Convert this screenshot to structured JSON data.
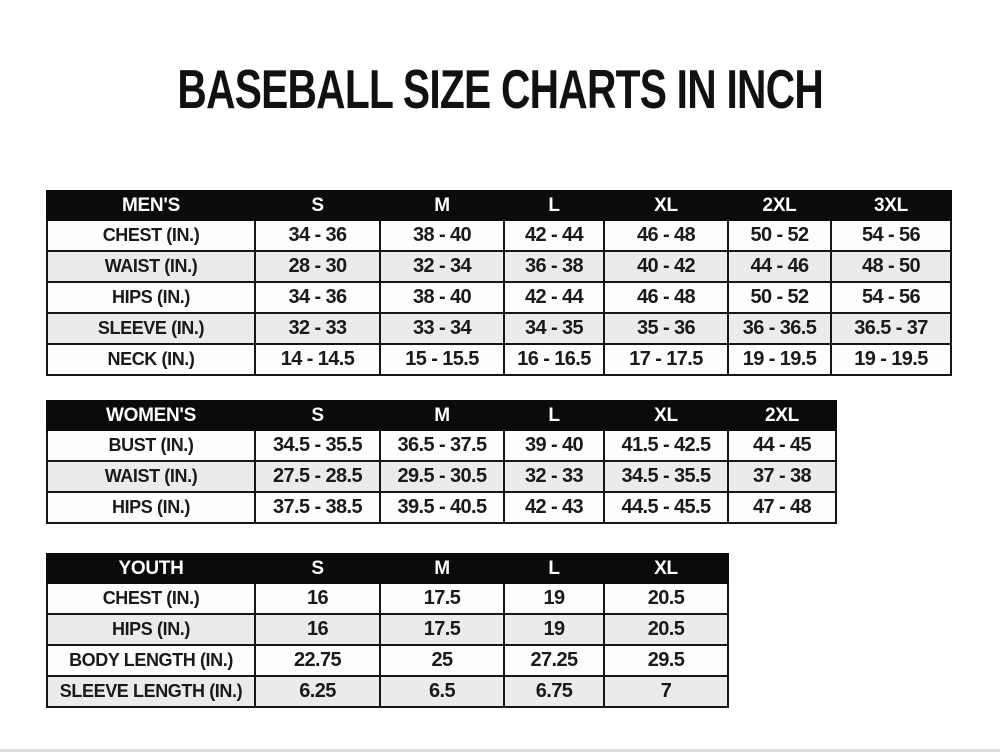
{
  "title": "BASEBALL SIZE CHARTS IN INCH",
  "colors": {
    "header_bg": "#0b0b0b",
    "header_text": "#ffffff",
    "stripe_row": "#ebebeb",
    "plain_row": "#fdfdfd",
    "border": "#161616",
    "text": "#1a1a1a",
    "page_bg": "#ffffff"
  },
  "tables": [
    {
      "name": "mens",
      "group_label": "MEN'S",
      "size_columns": [
        "S",
        "M",
        "L",
        "XL",
        "2XL",
        "3XL"
      ],
      "rows": [
        {
          "label": "CHEST (IN.)",
          "values": [
            "34 - 36",
            "38 - 40",
            "42 - 44",
            "46 - 48",
            "50 - 52",
            "54 - 56"
          ]
        },
        {
          "label": "WAIST (IN.)",
          "values": [
            "28 - 30",
            "32 - 34",
            "36 - 38",
            "40 - 42",
            "44 - 46",
            "48 - 50"
          ]
        },
        {
          "label": "HIPS (IN.)",
          "values": [
            "34 - 36",
            "38 - 40",
            "42 - 44",
            "46 - 48",
            "50 - 52",
            "54 - 56"
          ]
        },
        {
          "label": "SLEEVE (IN.)",
          "values": [
            "32 - 33",
            "33 - 34",
            "34 - 35",
            "35 - 36",
            "36 - 36.5",
            "36.5 - 37"
          ]
        },
        {
          "label": "NECK (IN.)",
          "values": [
            "14 - 14.5",
            "15 - 15.5",
            "16 - 16.5",
            "17 - 17.5",
            "19 - 19.5",
            "19 - 19.5"
          ]
        }
      ]
    },
    {
      "name": "womens",
      "group_label": "WOMEN'S",
      "size_columns": [
        "S",
        "M",
        "L",
        "XL",
        "2XL"
      ],
      "rows": [
        {
          "label": "BUST (IN.)",
          "values": [
            "34.5 - 35.5",
            "36.5 - 37.5",
            "39 - 40",
            "41.5 - 42.5",
            "44 - 45"
          ]
        },
        {
          "label": "WAIST (IN.)",
          "values": [
            "27.5 - 28.5",
            "29.5 - 30.5",
            "32 - 33",
            "34.5 - 35.5",
            "37 - 38"
          ]
        },
        {
          "label": "HIPS (IN.)",
          "values": [
            "37.5 - 38.5",
            "39.5 - 40.5",
            "42 - 43",
            "44.5 - 45.5",
            "47 - 48"
          ]
        }
      ]
    },
    {
      "name": "youth",
      "group_label": "YOUTH",
      "size_columns": [
        "S",
        "M",
        "L",
        "XL"
      ],
      "rows": [
        {
          "label": "CHEST (IN.)",
          "values": [
            "16",
            "17.5",
            "19",
            "20.5"
          ]
        },
        {
          "label": "HIPS (IN.)",
          "values": [
            "16",
            "17.5",
            "19",
            "20.5"
          ]
        },
        {
          "label": "BODY LENGTH (IN.)",
          "values": [
            "22.75",
            "25",
            "27.25",
            "29.5"
          ]
        },
        {
          "label": "SLEEVE LENGTH (IN.)",
          "values": [
            "6.25",
            "6.5",
            "6.75",
            "7"
          ]
        }
      ]
    }
  ]
}
